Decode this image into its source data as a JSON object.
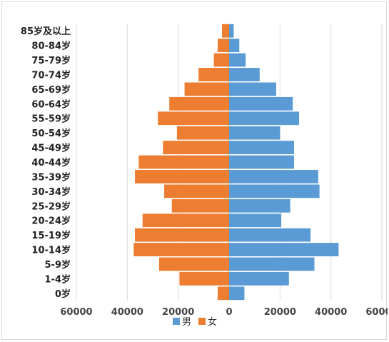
{
  "chart_data": {
    "type": "bar",
    "orientation": "horizontal",
    "layout": "population-pyramid",
    "categories": [
      "85岁及以上",
      "80-84岁",
      "75-79岁",
      "70-74岁",
      "65-69岁",
      "60-64岁",
      "55-59岁",
      "50-54岁",
      "45-49岁",
      "40-44岁",
      "35-39岁",
      "30-34岁",
      "25-29岁",
      "20-24岁",
      "15-19岁",
      "10-14岁",
      "5-9岁",
      "1-4岁",
      "0岁"
    ],
    "series": [
      {
        "name": "男",
        "color": "#5b9bd5",
        "values": [
          1800,
          4000,
          6500,
          12000,
          18500,
          25000,
          27500,
          20000,
          25500,
          25500,
          35000,
          35500,
          24000,
          20500,
          32000,
          43000,
          33500,
          23500,
          6000
        ]
      },
      {
        "name": "女",
        "color": "#ed7d31",
        "values": [
          2800,
          4500,
          6000,
          12000,
          17500,
          23500,
          28000,
          20500,
          26000,
          35500,
          37000,
          25500,
          22500,
          34000,
          37000,
          37500,
          27500,
          19500,
          4500
        ]
      }
    ],
    "xlim": [
      -60000,
      60000
    ],
    "x_ticks": [
      "60000",
      "40000",
      "20000",
      "0",
      "20000",
      "40000",
      "60000"
    ],
    "grid": true,
    "legend_position": "bottom",
    "title": "",
    "xlabel": "",
    "ylabel": ""
  }
}
